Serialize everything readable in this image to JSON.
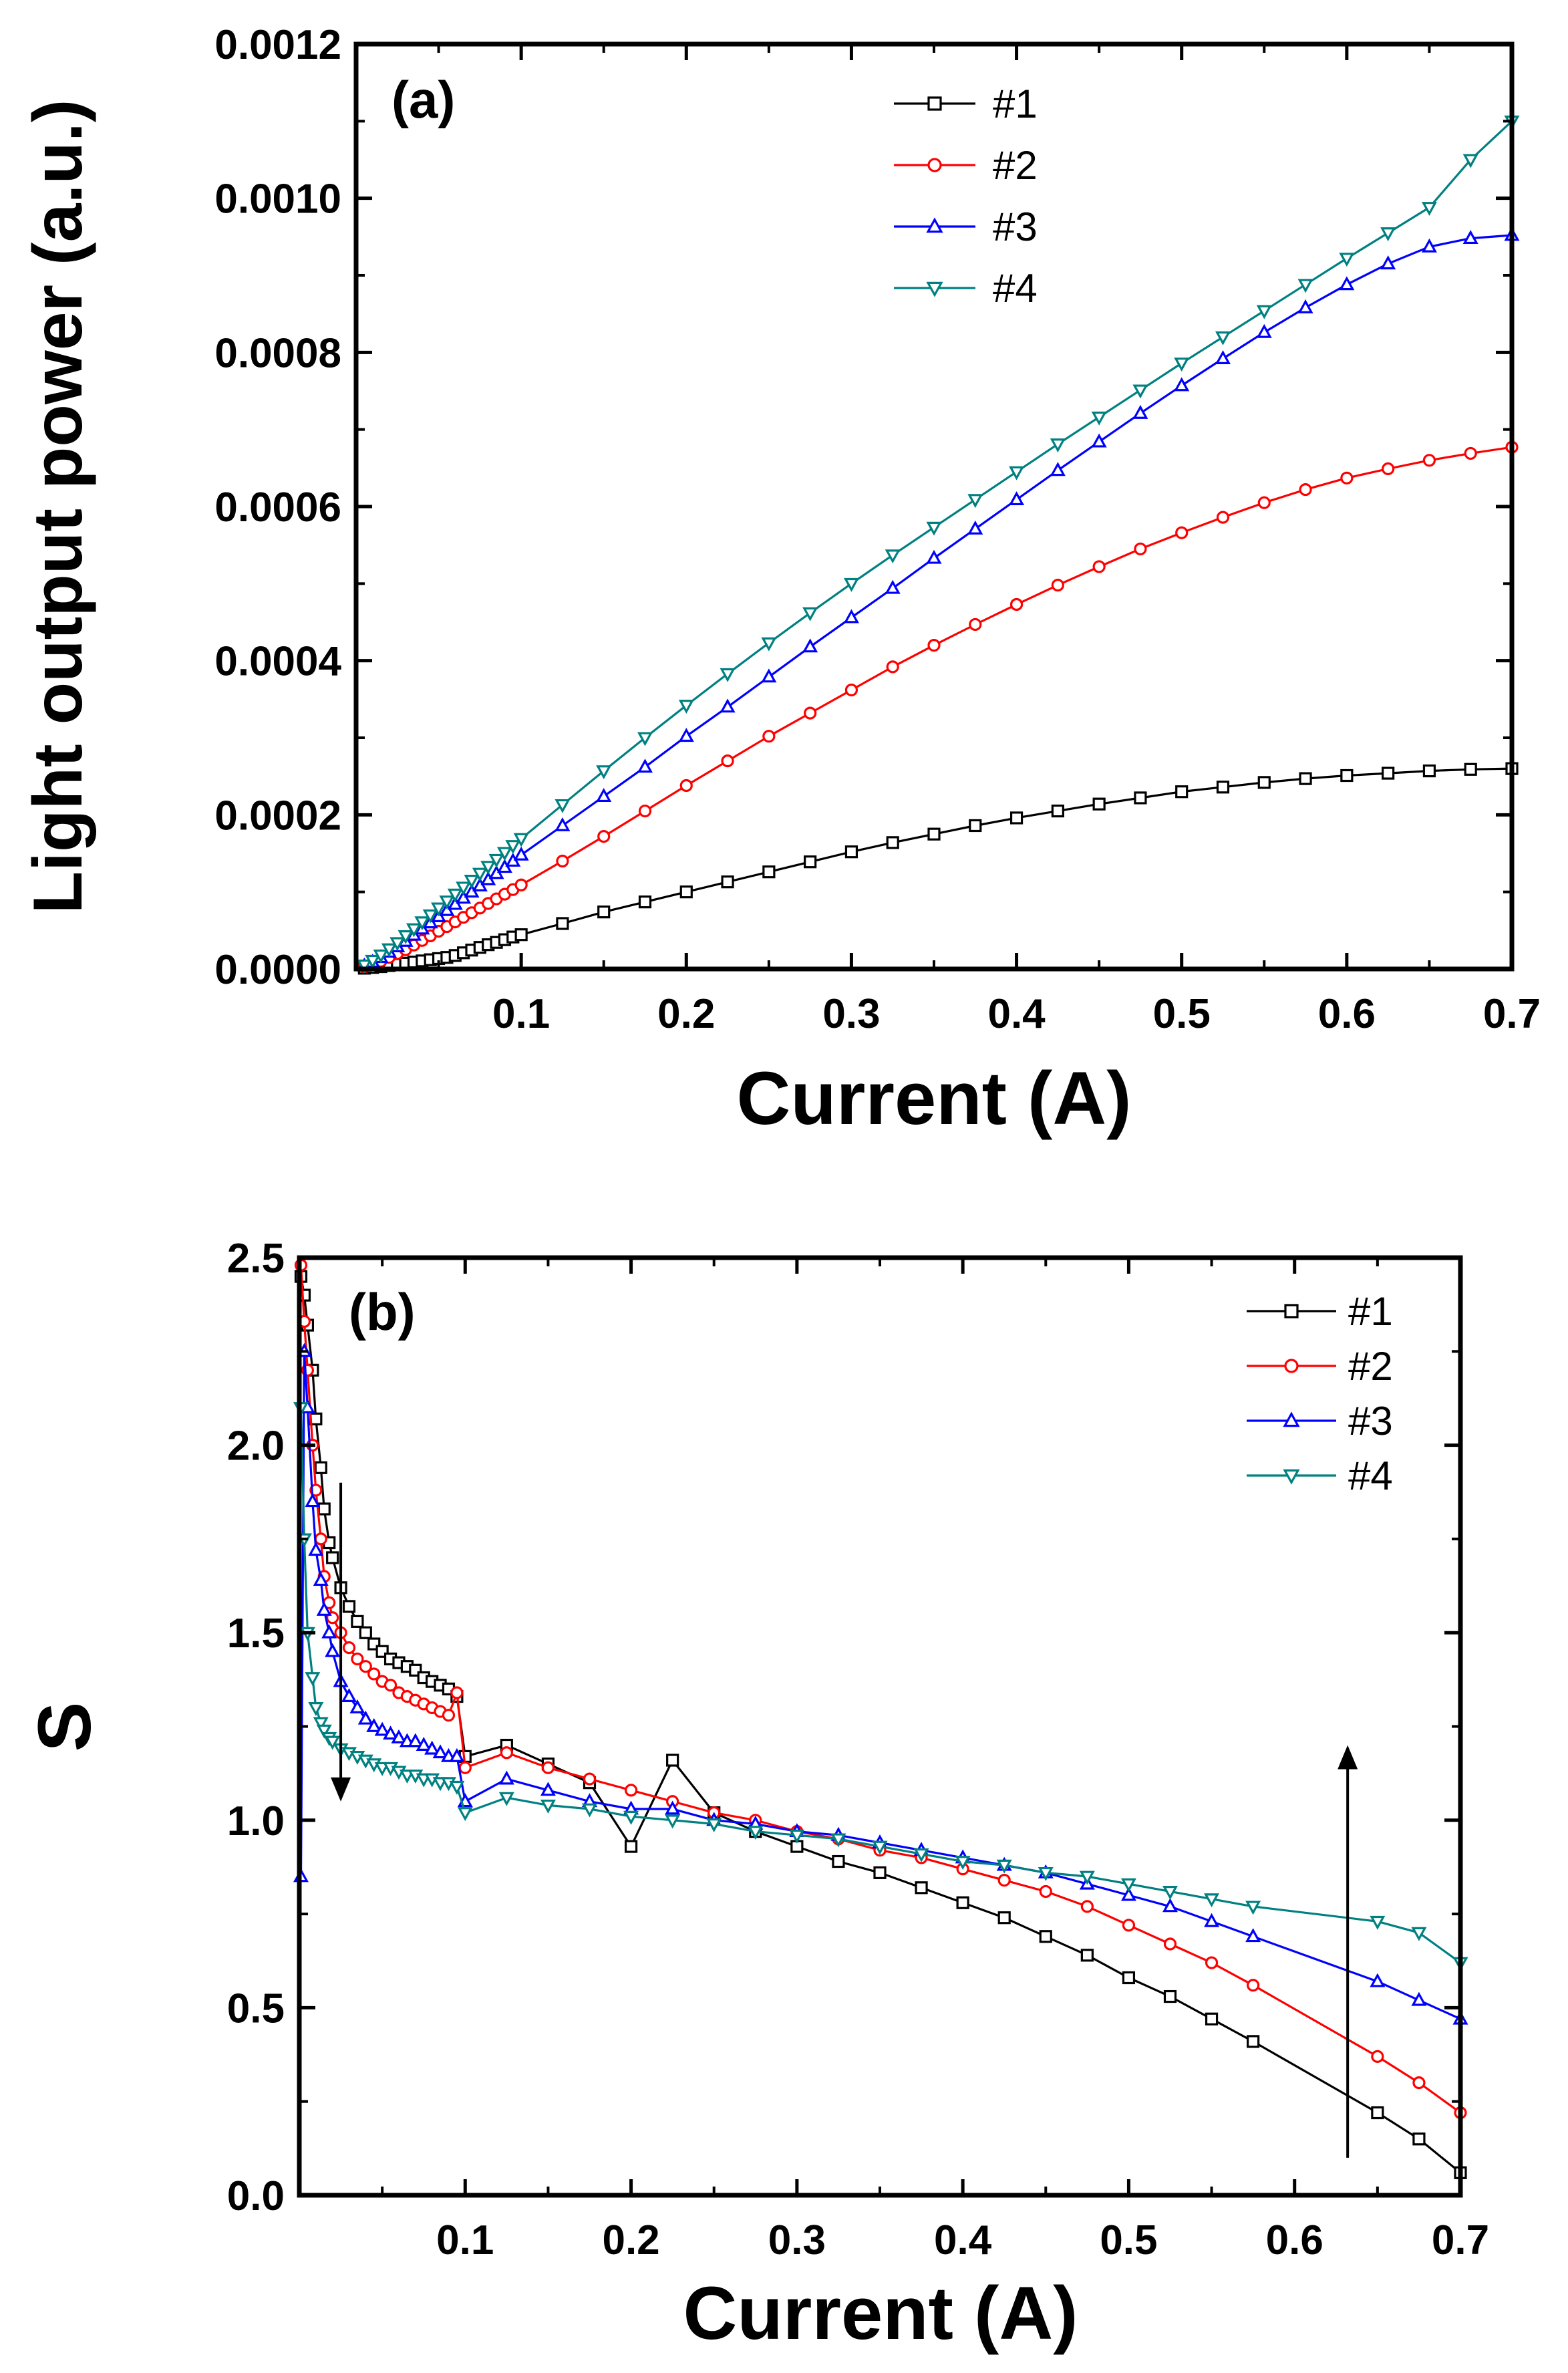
{
  "chart_data": [
    {
      "type": "line",
      "panel_label": "(a)",
      "xlabel": "Current (A)",
      "ylabel": "Light output power (a.u.)",
      "xlim": [
        0,
        0.7
      ],
      "ylim": [
        0,
        0.0012
      ],
      "xticks": [
        0.1,
        0.2,
        0.3,
        0.4,
        0.5,
        0.6,
        0.7
      ],
      "xtick_labels": [
        "0.1",
        "0.2",
        "0.3",
        "0.4",
        "0.5",
        "0.6",
        "0.7"
      ],
      "yticks": [
        0,
        0.0002,
        0.0004,
        0.0006,
        0.0008,
        0.001,
        0.0012
      ],
      "ytick_labels": [
        "0.0000",
        "0.0002",
        "0.0004",
        "0.0006",
        "0.0008",
        "0.0010",
        "0.0012"
      ],
      "legend_position": "top-center",
      "series": [
        {
          "name": "#1",
          "color": "#000000",
          "marker": "square",
          "x": [
            0.005,
            0.01,
            0.015,
            0.02,
            0.025,
            0.03,
            0.035,
            0.04,
            0.045,
            0.05,
            0.055,
            0.06,
            0.065,
            0.07,
            0.075,
            0.08,
            0.085,
            0.09,
            0.095,
            0.1,
            0.125,
            0.15,
            0.175,
            0.2,
            0.225,
            0.25,
            0.275,
            0.3,
            0.325,
            0.35,
            0.375,
            0.4,
            0.425,
            0.45,
            0.475,
            0.5,
            0.525,
            0.55,
            0.575,
            0.6,
            0.625,
            0.65,
            0.675,
            0.7
          ],
          "y": [
            1e-06,
            2e-06,
            3e-06,
            4.5e-06,
            6e-06,
            7.5e-06,
            9e-06,
            1.05e-05,
            1.2e-05,
            1.35e-05,
            1.5e-05,
            1.75e-05,
            2.1e-05,
            2.45e-05,
            2.8e-05,
            3.15e-05,
            3.45e-05,
            3.8e-05,
            4.15e-05,
            4.45e-05,
            5.9e-05,
            7.4e-05,
            8.7e-05,
            0.0001,
            0.000113,
            0.000126,
            0.000139,
            0.000152,
            0.000164,
            0.000175,
            0.000186,
            0.000196,
            0.000205,
            0.000214,
            0.000222,
            0.00023,
            0.000236,
            0.000242,
            0.000247,
            0.000251,
            0.000254,
            0.000257,
            0.000259,
            0.00026
          ]
        },
        {
          "name": "#2",
          "color": "#ff0000",
          "marker": "circle",
          "x": [
            0.005,
            0.01,
            0.015,
            0.02,
            0.025,
            0.03,
            0.035,
            0.04,
            0.045,
            0.05,
            0.055,
            0.06,
            0.065,
            0.07,
            0.075,
            0.08,
            0.085,
            0.09,
            0.095,
            0.1,
            0.125,
            0.15,
            0.175,
            0.2,
            0.225,
            0.25,
            0.275,
            0.3,
            0.325,
            0.35,
            0.375,
            0.4,
            0.425,
            0.45,
            0.475,
            0.5,
            0.525,
            0.55,
            0.575,
            0.6,
            0.625,
            0.65,
            0.675,
            0.7
          ],
          "y": [
            3e-06,
            6e-06,
            1e-05,
            1.5e-05,
            2e-05,
            2.5e-05,
            3.1e-05,
            3.7e-05,
            4.3e-05,
            4.9e-05,
            5.5e-05,
            6.1e-05,
            6.7e-05,
            7.3e-05,
            7.9e-05,
            8.5e-05,
            9.1e-05,
            9.7e-05,
            0.000103,
            0.000109,
            0.00014,
            0.000172,
            0.000205,
            0.000238,
            0.00027,
            0.000302,
            0.000332,
            0.000362,
            0.000392,
            0.00042,
            0.000447,
            0.000473,
            0.000498,
            0.000522,
            0.000545,
            0.000566,
            0.000586,
            0.000605,
            0.000622,
            0.000637,
            0.000649,
            0.00066,
            0.000669,
            0.000677
          ]
        },
        {
          "name": "#3",
          "color": "#0000ff",
          "marker": "triangle-up",
          "x": [
            0.005,
            0.01,
            0.015,
            0.02,
            0.025,
            0.03,
            0.035,
            0.04,
            0.045,
            0.05,
            0.055,
            0.06,
            0.065,
            0.07,
            0.075,
            0.08,
            0.085,
            0.09,
            0.095,
            0.1,
            0.125,
            0.15,
            0.175,
            0.2,
            0.225,
            0.25,
            0.275,
            0.3,
            0.325,
            0.35,
            0.375,
            0.4,
            0.425,
            0.45,
            0.475,
            0.5,
            0.525,
            0.55,
            0.575,
            0.6,
            0.625,
            0.65,
            0.675,
            0.7
          ],
          "y": [
            4e-06,
            9e-06,
            1.5e-05,
            2.2e-05,
            2.9e-05,
            3.6e-05,
            4.4e-05,
            5.2e-05,
            6e-05,
            6.8e-05,
            7.6e-05,
            8.4e-05,
            9.2e-05,
            0.0001,
            0.000108,
            0.000116,
            0.000124,
            0.000132,
            0.00014,
            0.000148,
            0.000186,
            0.000224,
            0.000262,
            0.000302,
            0.00034,
            0.000379,
            0.000418,
            0.000456,
            0.000494,
            0.000533,
            0.000571,
            0.000609,
            0.000647,
            0.000684,
            0.000721,
            0.000757,
            0.000792,
            0.000826,
            0.000858,
            0.000888,
            0.000915,
            0.000937,
            0.000948,
            0.000952
          ]
        },
        {
          "name": "#4",
          "color": "#008080",
          "marker": "triangle-down",
          "x": [
            0.005,
            0.01,
            0.015,
            0.02,
            0.025,
            0.03,
            0.035,
            0.04,
            0.045,
            0.05,
            0.055,
            0.06,
            0.065,
            0.07,
            0.075,
            0.08,
            0.085,
            0.09,
            0.095,
            0.1,
            0.125,
            0.15,
            0.175,
            0.2,
            0.225,
            0.25,
            0.275,
            0.3,
            0.325,
            0.35,
            0.375,
            0.4,
            0.425,
            0.45,
            0.475,
            0.5,
            0.525,
            0.55,
            0.575,
            0.6,
            0.625,
            0.65,
            0.675,
            0.7
          ],
          "y": [
            5e-06,
            1.1e-05,
            1.8e-05,
            2.6e-05,
            3.4e-05,
            4.3e-05,
            5.2e-05,
            6.1e-05,
            7e-05,
            7.9e-05,
            8.8e-05,
            9.7e-05,
            0.000106,
            0.000115,
            0.000124,
            0.000133,
            0.000142,
            0.000151,
            0.00016,
            0.000169,
            0.000213,
            0.000257,
            0.0003,
            0.000342,
            0.000383,
            0.000423,
            0.000462,
            0.0005,
            0.000537,
            0.000573,
            0.000609,
            0.000645,
            0.000681,
            0.000716,
            0.000751,
            0.000786,
            0.00082,
            0.000854,
            0.000888,
            0.000922,
            0.000955,
            0.000988,
            0.00105,
            0.0011
          ]
        }
      ]
    },
    {
      "type": "line",
      "panel_label": "(b)",
      "xlabel": "Current (A)",
      "ylabel": "S",
      "xlim": [
        0,
        0.7
      ],
      "ylim": [
        0,
        2.5
      ],
      "xticks": [
        0.1,
        0.2,
        0.3,
        0.4,
        0.5,
        0.6,
        0.7
      ],
      "xtick_labels": [
        "0.1",
        "0.2",
        "0.3",
        "0.4",
        "0.5",
        "0.6",
        "0.7"
      ],
      "yticks": [
        0,
        0.5,
        1.0,
        1.5,
        2.0,
        2.5
      ],
      "ytick_labels": [
        "0.0",
        "0.5",
        "1.0",
        "1.5",
        "2.0",
        "2.5"
      ],
      "legend_position": "top-right",
      "annotations": [
        {
          "type": "arrow",
          "direction": "down",
          "x": 0.025,
          "y_from": 1.9,
          "y_to": 1.05
        },
        {
          "type": "arrow",
          "direction": "up",
          "x": 0.632,
          "y_from": 0.1,
          "y_to": 1.2
        }
      ],
      "series": [
        {
          "name": "#1",
          "color": "#000000",
          "marker": "square",
          "x": [
            0.001,
            0.003,
            0.005,
            0.008,
            0.01,
            0.013,
            0.015,
            0.018,
            0.02,
            0.025,
            0.03,
            0.035,
            0.04,
            0.045,
            0.05,
            0.055,
            0.06,
            0.065,
            0.07,
            0.075,
            0.08,
            0.085,
            0.09,
            0.095,
            0.1,
            0.125,
            0.15,
            0.175,
            0.2,
            0.225,
            0.25,
            0.275,
            0.3,
            0.325,
            0.35,
            0.375,
            0.4,
            0.425,
            0.45,
            0.475,
            0.5,
            0.525,
            0.55,
            0.575,
            0.65,
            0.675,
            0.7
          ],
          "y": [
            2.45,
            2.4,
            2.32,
            2.2,
            2.07,
            1.94,
            1.83,
            1.74,
            1.7,
            1.62,
            1.57,
            1.53,
            1.5,
            1.47,
            1.45,
            1.43,
            1.42,
            1.41,
            1.4,
            1.38,
            1.37,
            1.36,
            1.35,
            1.33,
            1.17,
            1.2,
            1.15,
            1.1,
            0.93,
            1.16,
            1.02,
            0.97,
            0.93,
            0.89,
            0.86,
            0.82,
            0.78,
            0.74,
            0.69,
            0.64,
            0.58,
            0.53,
            0.47,
            0.41,
            0.22,
            0.15,
            0.06
          ]
        },
        {
          "name": "#2",
          "color": "#ff0000",
          "marker": "circle",
          "x": [
            0.001,
            0.003,
            0.005,
            0.008,
            0.01,
            0.013,
            0.015,
            0.018,
            0.02,
            0.025,
            0.03,
            0.035,
            0.04,
            0.045,
            0.05,
            0.055,
            0.06,
            0.065,
            0.07,
            0.075,
            0.08,
            0.085,
            0.09,
            0.095,
            0.1,
            0.125,
            0.15,
            0.175,
            0.2,
            0.225,
            0.25,
            0.275,
            0.3,
            0.325,
            0.35,
            0.375,
            0.4,
            0.425,
            0.45,
            0.475,
            0.5,
            0.525,
            0.55,
            0.575,
            0.65,
            0.675,
            0.7
          ],
          "y": [
            2.48,
            2.33,
            2.2,
            2.0,
            1.88,
            1.75,
            1.65,
            1.58,
            1.54,
            1.5,
            1.46,
            1.43,
            1.41,
            1.39,
            1.37,
            1.36,
            1.34,
            1.33,
            1.32,
            1.31,
            1.3,
            1.29,
            1.28,
            1.34,
            1.14,
            1.18,
            1.14,
            1.11,
            1.08,
            1.05,
            1.02,
            1.0,
            0.97,
            0.95,
            0.92,
            0.9,
            0.87,
            0.84,
            0.81,
            0.77,
            0.72,
            0.67,
            0.62,
            0.56,
            0.37,
            0.3,
            0.22
          ]
        },
        {
          "name": "#3",
          "color": "#0000ff",
          "marker": "triangle-up",
          "x": [
            0.001,
            0.003,
            0.005,
            0.008,
            0.01,
            0.013,
            0.015,
            0.018,
            0.02,
            0.025,
            0.03,
            0.035,
            0.04,
            0.045,
            0.05,
            0.055,
            0.06,
            0.065,
            0.07,
            0.075,
            0.08,
            0.085,
            0.09,
            0.095,
            0.1,
            0.125,
            0.15,
            0.175,
            0.2,
            0.225,
            0.25,
            0.275,
            0.3,
            0.325,
            0.35,
            0.375,
            0.4,
            0.425,
            0.45,
            0.475,
            0.5,
            0.525,
            0.55,
            0.575,
            0.65,
            0.675,
            0.7
          ],
          "y": [
            0.85,
            2.25,
            2.1,
            1.85,
            1.72,
            1.64,
            1.56,
            1.5,
            1.45,
            1.37,
            1.33,
            1.3,
            1.27,
            1.25,
            1.24,
            1.23,
            1.22,
            1.21,
            1.21,
            1.2,
            1.19,
            1.18,
            1.17,
            1.17,
            1.05,
            1.11,
            1.08,
            1.05,
            1.03,
            1.03,
            1.0,
            0.99,
            0.97,
            0.96,
            0.94,
            0.92,
            0.9,
            0.88,
            0.86,
            0.83,
            0.8,
            0.77,
            0.73,
            0.69,
            0.57,
            0.52,
            0.47
          ]
        },
        {
          "name": "#4",
          "color": "#008080",
          "marker": "triangle-down",
          "x": [
            0.001,
            0.003,
            0.005,
            0.008,
            0.01,
            0.013,
            0.015,
            0.018,
            0.02,
            0.025,
            0.03,
            0.035,
            0.04,
            0.045,
            0.05,
            0.055,
            0.06,
            0.065,
            0.07,
            0.075,
            0.08,
            0.085,
            0.09,
            0.095,
            0.1,
            0.125,
            0.15,
            0.175,
            0.2,
            0.225,
            0.25,
            0.275,
            0.3,
            0.325,
            0.35,
            0.375,
            0.4,
            0.425,
            0.45,
            0.475,
            0.5,
            0.525,
            0.55,
            0.575,
            0.65,
            0.675,
            0.7
          ],
          "y": [
            2.1,
            1.75,
            1.5,
            1.38,
            1.3,
            1.26,
            1.24,
            1.22,
            1.21,
            1.19,
            1.18,
            1.17,
            1.16,
            1.15,
            1.14,
            1.14,
            1.13,
            1.12,
            1.12,
            1.11,
            1.11,
            1.1,
            1.1,
            1.09,
            1.02,
            1.06,
            1.04,
            1.03,
            1.01,
            1.0,
            0.99,
            0.97,
            0.96,
            0.95,
            0.93,
            0.91,
            0.89,
            0.88,
            0.86,
            0.85,
            0.83,
            0.81,
            0.79,
            0.77,
            0.73,
            0.7,
            0.62
          ]
        }
      ]
    }
  ]
}
